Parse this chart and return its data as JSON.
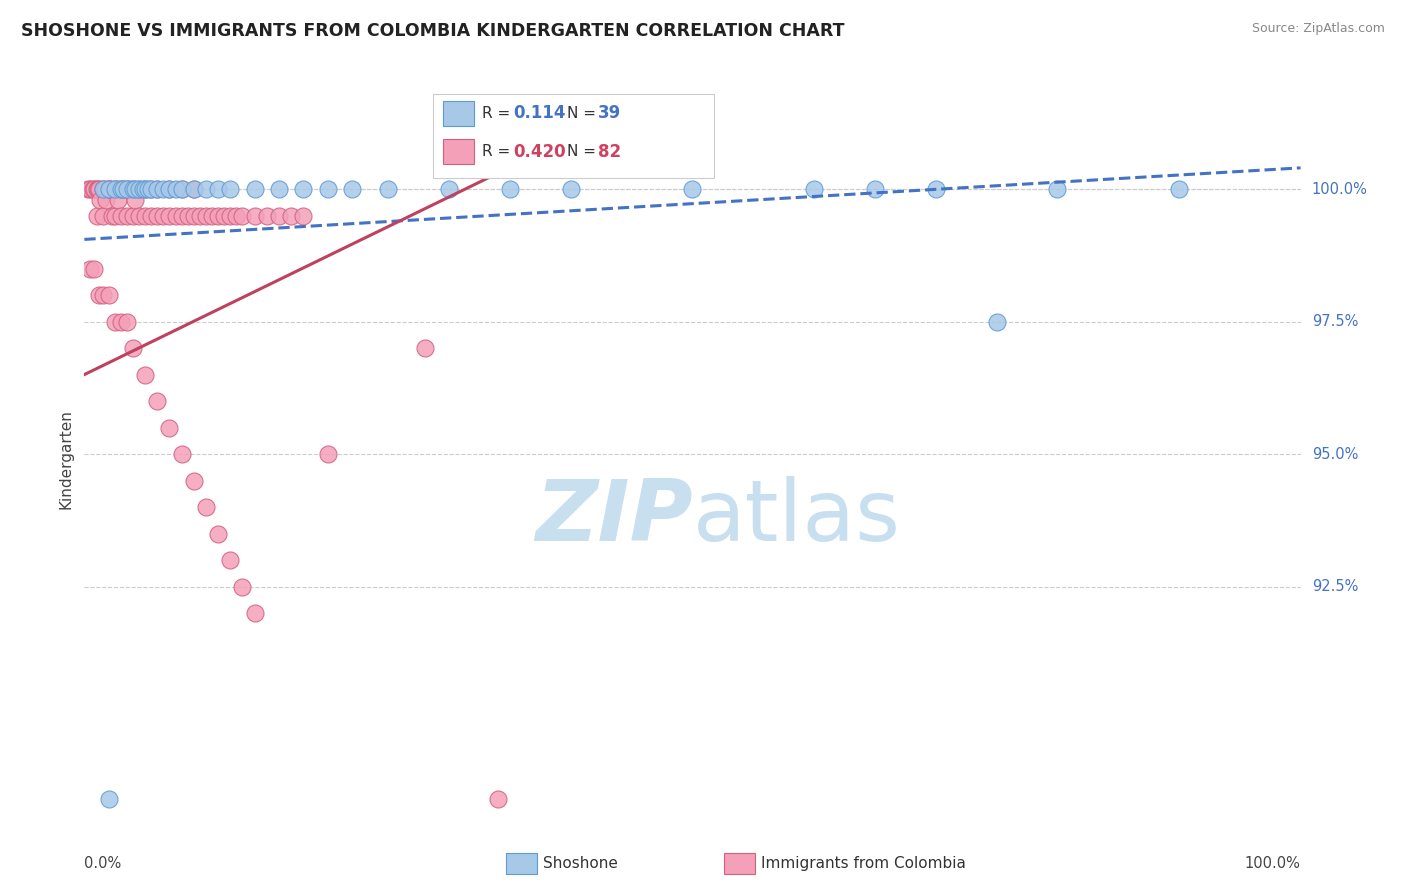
{
  "title": "SHOSHONE VS IMMIGRANTS FROM COLOMBIA KINDERGARTEN CORRELATION CHART",
  "source_text": "Source: ZipAtlas.com",
  "ylabel": "Kindergarten",
  "xmin": 0.0,
  "xmax": 100.0,
  "ymin": 88.0,
  "ymax": 101.8,
  "yticks": [
    92.5,
    95.0,
    97.5,
    100.0
  ],
  "R1": "0.114",
  "N1": "39",
  "R2": "0.420",
  "N2": "82",
  "color_blue_fill": "#a8c8e8",
  "color_blue_edge": "#5b9bd5",
  "color_pink_fill": "#f4a0b8",
  "color_pink_edge": "#d06080",
  "color_blue_line": "#4472c4",
  "color_pink_line": "#c04060",
  "color_blue_text": "#4472c4",
  "color_pink_text": "#d04060",
  "watermark_color": "#c8dff0",
  "background_color": "#ffffff",
  "grid_color": "#cccccc",
  "shoshone_x": [
    1.5,
    2.0,
    2.5,
    3.0,
    3.2,
    3.5,
    4.0,
    4.2,
    4.5,
    4.8,
    5.0,
    5.2,
    5.5,
    6.0,
    6.5,
    7.0,
    7.5,
    8.0,
    9.0,
    10.0,
    11.0,
    12.0,
    14.0,
    16.0,
    18.0,
    20.0,
    22.0,
    25.0,
    30.0,
    35.0,
    40.0,
    50.0,
    60.0,
    65.0,
    70.0,
    75.0,
    80.0,
    90.0,
    2.0
  ],
  "shoshone_y": [
    100.0,
    100.0,
    100.0,
    100.0,
    100.0,
    100.0,
    100.0,
    100.0,
    100.0,
    100.0,
    100.0,
    100.0,
    100.0,
    100.0,
    100.0,
    100.0,
    100.0,
    100.0,
    100.0,
    100.0,
    100.0,
    100.0,
    100.0,
    100.0,
    100.0,
    100.0,
    100.0,
    100.0,
    100.0,
    100.0,
    100.0,
    100.0,
    100.0,
    100.0,
    100.0,
    97.5,
    100.0,
    100.0,
    88.5
  ],
  "colombia_x": [
    0.3,
    0.5,
    0.7,
    0.8,
    1.0,
    1.0,
    1.1,
    1.2,
    1.3,
    1.5,
    1.5,
    1.7,
    1.8,
    2.0,
    2.0,
    2.2,
    2.3,
    2.5,
    2.5,
    2.7,
    2.8,
    3.0,
    3.0,
    3.2,
    3.5,
    3.5,
    3.7,
    4.0,
    4.0,
    4.2,
    4.5,
    4.5,
    5.0,
    5.0,
    5.5,
    5.5,
    6.0,
    6.0,
    6.5,
    7.0,
    7.0,
    7.5,
    8.0,
    8.0,
    8.5,
    9.0,
    9.0,
    9.5,
    10.0,
    10.5,
    11.0,
    11.5,
    12.0,
    12.5,
    13.0,
    14.0,
    15.0,
    16.0,
    17.0,
    18.0,
    0.5,
    0.8,
    1.2,
    1.5,
    2.0,
    2.5,
    3.0,
    3.5,
    4.0,
    5.0,
    6.0,
    7.0,
    8.0,
    9.0,
    10.0,
    11.0,
    12.0,
    13.0,
    14.0,
    20.0,
    28.0,
    34.0
  ],
  "colombia_y": [
    100.0,
    100.0,
    100.0,
    100.0,
    100.0,
    99.5,
    100.0,
    100.0,
    99.8,
    100.0,
    99.5,
    100.0,
    99.8,
    100.0,
    100.0,
    100.0,
    99.5,
    100.0,
    99.5,
    100.0,
    99.8,
    100.0,
    99.5,
    100.0,
    100.0,
    99.5,
    100.0,
    99.5,
    100.0,
    99.8,
    99.5,
    100.0,
    100.0,
    99.5,
    99.5,
    100.0,
    99.5,
    100.0,
    99.5,
    99.5,
    100.0,
    99.5,
    99.5,
    100.0,
    99.5,
    99.5,
    100.0,
    99.5,
    99.5,
    99.5,
    99.5,
    99.5,
    99.5,
    99.5,
    99.5,
    99.5,
    99.5,
    99.5,
    99.5,
    99.5,
    98.5,
    98.5,
    98.0,
    98.0,
    98.0,
    97.5,
    97.5,
    97.5,
    97.0,
    96.5,
    96.0,
    95.5,
    95.0,
    94.5,
    94.0,
    93.5,
    93.0,
    92.5,
    92.0,
    95.0,
    97.0,
    88.5
  ],
  "sh_trend_x": [
    0.0,
    100.0
  ],
  "sh_trend_y": [
    99.05,
    100.4
  ],
  "col_trend_x": [
    0.0,
    34.0
  ],
  "col_trend_y": [
    96.5,
    100.3
  ]
}
